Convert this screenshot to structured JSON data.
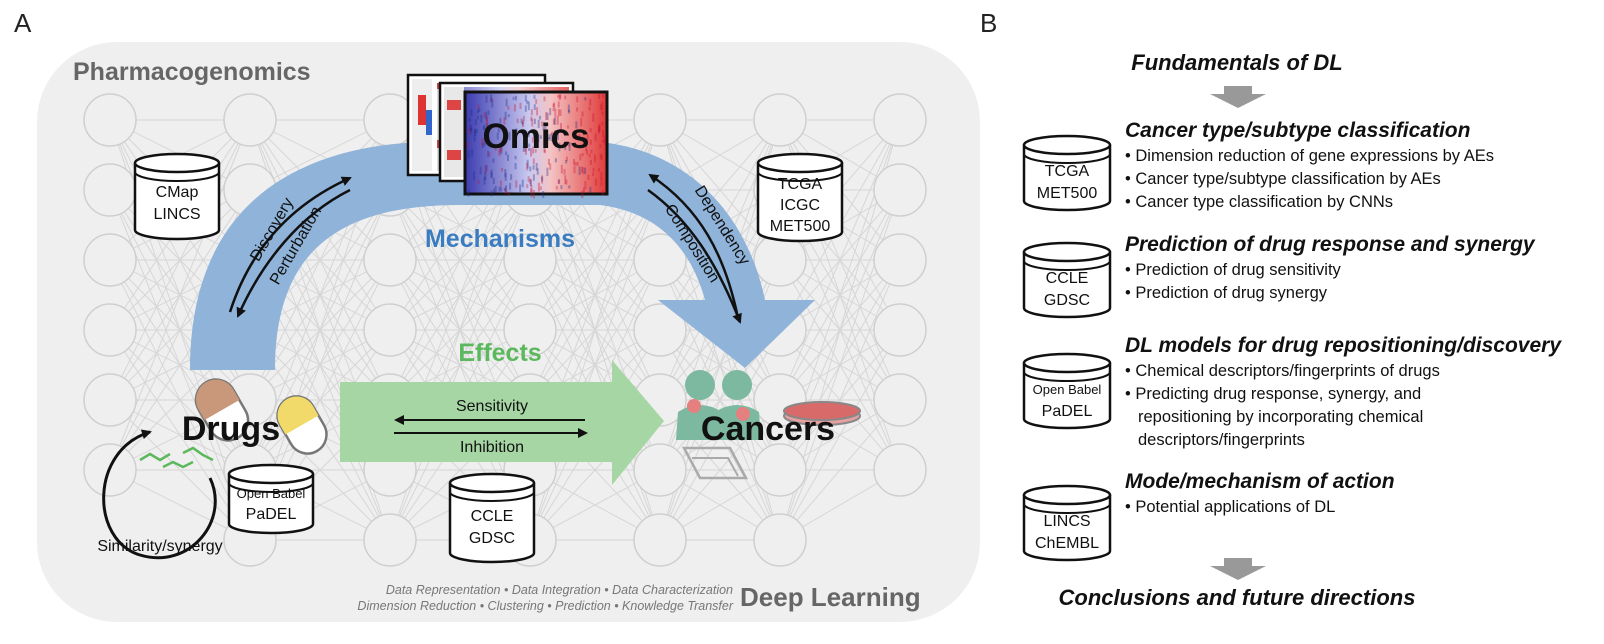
{
  "panel_a": {
    "label": "A",
    "title": "Pharmacogenomics",
    "omics": "Omics",
    "mechanisms": "Mechanisms",
    "effects": "Effects",
    "drugs": "Drugs",
    "cancers": "Cancers",
    "deep_learning": "Deep Learning",
    "arrow_left": {
      "outer": "Discovery",
      "inner": "Perturbation"
    },
    "arrow_right": {
      "outer": "Dependency",
      "inner": "Composition"
    },
    "arrow_mid": {
      "top": "Sensitivity",
      "bottom": "Inhibition"
    },
    "similarity": "Similarity/synergy",
    "dl_tasks": {
      "line1": "Data Representation • Data Integration • Data Characterization",
      "line2": "Dimension Reduction • Clustering • Prediction • Knowledge Transfer"
    },
    "databases": {
      "cmap": [
        "CMap",
        "LINCS"
      ],
      "tcga": [
        "TCGA",
        "ICGC",
        "MET500"
      ],
      "drugs_db": [
        "Open Babel",
        "PaDEL"
      ],
      "ccle": [
        "CCLE",
        "GDSC"
      ]
    }
  },
  "panel_b": {
    "label": "B",
    "top_title": "Fundamentals of DL",
    "bottom_title": "Conclusions and future directions",
    "sections": [
      {
        "title": "Cancer type/subtype classification",
        "db": [
          "TCGA",
          "MET500"
        ],
        "bullets": [
          "• Dimension reduction of gene expressions by AEs",
          "• Cancer type/subtype classification by AEs",
          "• Cancer type classification by CNNs"
        ]
      },
      {
        "title": "Prediction of drug response and synergy",
        "db": [
          "CCLE",
          "GDSC"
        ],
        "bullets": [
          "• Prediction of drug sensitivity",
          "• Prediction of drug synergy"
        ]
      },
      {
        "title": "DL models for drug repositioning/discovery",
        "db": [
          "Open Babel",
          "PaDEL"
        ],
        "bullets": [
          "• Chemical descriptors/fingerprints of drugs",
          "• Predicting drug response, synergy, and",
          "repositioning  by incorporating chemical",
          "descriptors/fingerprints"
        ]
      },
      {
        "title": "Mode/mechanism of action",
        "db": [
          "LINCS",
          "ChEMBL"
        ],
        "bullets": [
          "• Potential applications of DL"
        ]
      }
    ]
  },
  "colors": {
    "panel_bg": "#efefef",
    "blue_arrow": "#8fb3d9",
    "mechanisms": "#3a7cc2",
    "green_arrow": "#a7d6a5",
    "effects": "#5cb85c",
    "grey_text": "#666666",
    "net": "#cfcfcf"
  }
}
